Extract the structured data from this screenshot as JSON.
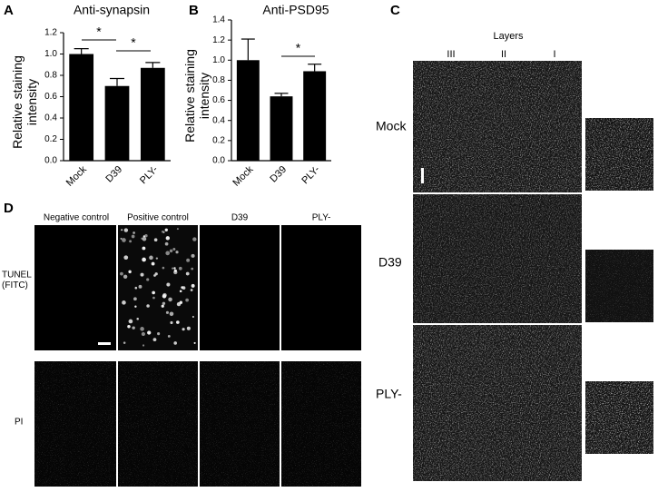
{
  "chart_data": [
    {
      "type": "bar",
      "panel_label": "A",
      "title": "Anti-synapsin",
      "ylabel": "Relative staining\nintensity",
      "categories": [
        "Mock",
        "D39",
        "PLY-"
      ],
      "values": [
        1.0,
        0.7,
        0.87
      ],
      "errors": [
        0.05,
        0.07,
        0.05
      ],
      "color": "#000000",
      "ylim": [
        0,
        1.2
      ],
      "yticks": [
        {
          "value": 0,
          "label": "0.0"
        },
        0.2,
        0.4,
        0.6,
        0.8,
        {
          "value": 1,
          "label": "1.0"
        },
        1.2
      ],
      "annotations": [
        "*",
        "*"
      ]
    },
    {
      "type": "bar",
      "panel_label": "B",
      "title": "Anti-PSD95",
      "ylabel": "Relative staining\nintensity",
      "categories": [
        "Mock",
        "D39",
        "PLY-"
      ],
      "values": [
        1.0,
        0.64,
        0.89
      ],
      "errors": [
        0.21,
        0.03,
        0.07
      ],
      "color": "#000000",
      "ylim": [
        0,
        1.4
      ],
      "yticks": [
        {
          "value": 0,
          "label": "0.0"
        },
        0.2,
        0.4,
        0.6,
        0.8,
        {
          "value": 1,
          "label": "1.0"
        },
        1.2,
        1.4
      ],
      "annotations": [
        "*"
      ]
    }
  ],
  "panel_c": {
    "label": "C",
    "title": "Layers",
    "layers": [
      "III",
      "II",
      "I"
    ],
    "rows": [
      "Mock",
      "D39",
      "PLY-"
    ]
  },
  "panel_d": {
    "label": "D",
    "columns": [
      "Negative control",
      "Positive control",
      "D39",
      "PLY-"
    ],
    "rows": [
      "TUNEL\n(FITC)",
      "PI"
    ]
  }
}
